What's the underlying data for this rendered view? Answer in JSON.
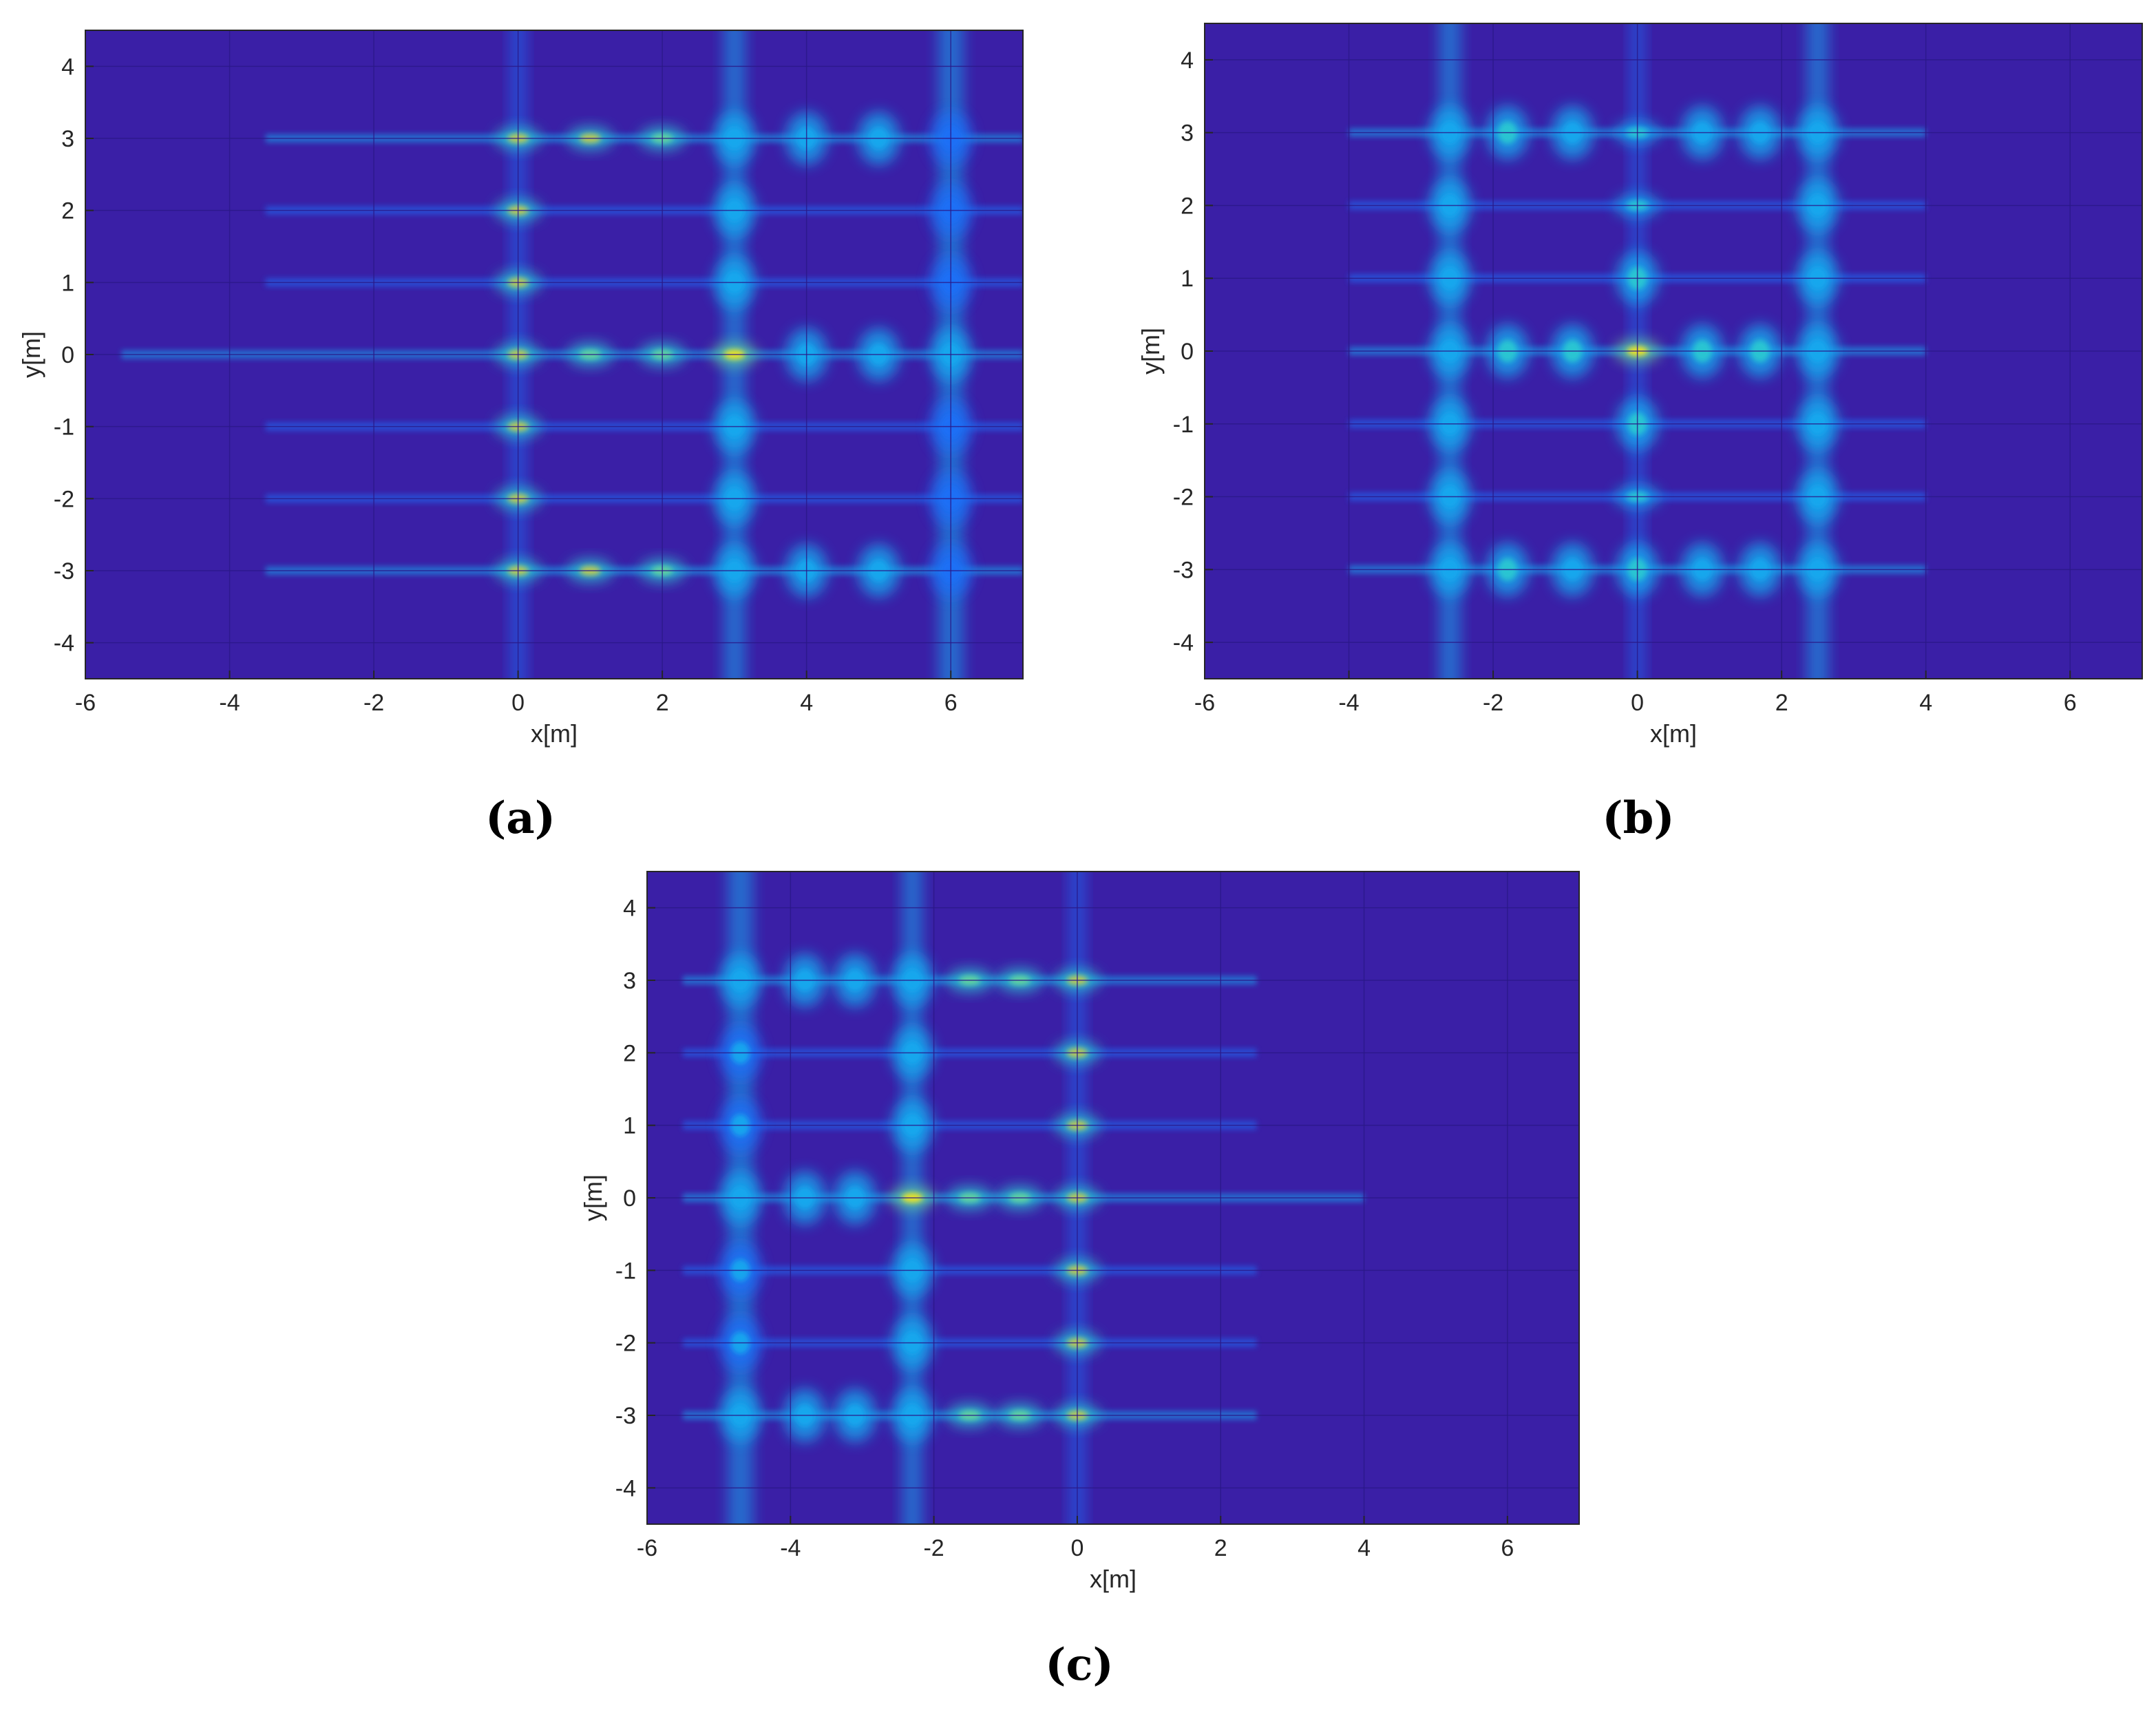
{
  "figure": {
    "colors": {
      "background": "#3a1fa6",
      "frame": "#262626",
      "grid": "#2a1888",
      "colormap": [
        "#3a1fa6",
        "#2f39d9",
        "#1f6ff6",
        "#18a8ee",
        "#2ac8d1",
        "#66d39c",
        "#c4c94d",
        "#f7e31f"
      ]
    }
  },
  "chart_data": [
    {
      "type": "heatmap",
      "panel_label": "(a)",
      "xlabel": "x[m]",
      "ylabel": "y[m]",
      "xlim": [
        -6,
        7
      ],
      "ylim": [
        -4.5,
        4.5
      ],
      "xticks": [
        -6,
        -4,
        -2,
        0,
        2,
        4,
        6
      ],
      "yticks": [
        4,
        3,
        2,
        1,
        0,
        -1,
        -2,
        -3,
        -4
      ],
      "xtick_labels": [
        "-6",
        "-4",
        "-2",
        "0",
        "2",
        "4",
        "6"
      ],
      "ytick_labels": [
        "4",
        "3",
        "2",
        "1",
        "0",
        "-1",
        "-2",
        "-3",
        "-4"
      ],
      "grid": true,
      "streaks": [
        {
          "y": 3,
          "x0": -3.5,
          "x1": 7,
          "intensity": 0.2
        },
        {
          "y": 2,
          "x0": -3.5,
          "x1": 7,
          "intensity": 0.12
        },
        {
          "y": 1,
          "x0": -3.5,
          "x1": 7,
          "intensity": 0.12
        },
        {
          "y": 0,
          "x0": -5.5,
          "x1": 7,
          "intensity": 0.22
        },
        {
          "y": -1,
          "x0": -3.5,
          "x1": 7,
          "intensity": 0.12
        },
        {
          "y": -2,
          "x0": -3.5,
          "x1": 7,
          "intensity": 0.12
        },
        {
          "y": -3,
          "x0": -3.5,
          "x1": 7,
          "intensity": 0.2
        }
      ],
      "bands": [
        {
          "x": 0,
          "intensity": 0.16,
          "width": 0.22
        },
        {
          "x": 3,
          "intensity": 0.26,
          "width": 0.3
        },
        {
          "x": 6,
          "intensity": 0.3,
          "width": 0.35
        }
      ],
      "points": [
        {
          "x": 0,
          "y": 3,
          "intensity": 0.85
        },
        {
          "x": 0,
          "y": 2,
          "intensity": 0.85
        },
        {
          "x": 0,
          "y": 1,
          "intensity": 0.85
        },
        {
          "x": 0,
          "y": 0,
          "intensity": 0.85
        },
        {
          "x": 0,
          "y": -1,
          "intensity": 0.85
        },
        {
          "x": 0,
          "y": -2,
          "intensity": 0.85
        },
        {
          "x": 0,
          "y": -3,
          "intensity": 0.85
        },
        {
          "x": 1,
          "y": 3,
          "intensity": 0.8
        },
        {
          "x": 2,
          "y": 3,
          "intensity": 0.72
        },
        {
          "x": 1,
          "y": 0,
          "intensity": 0.75
        },
        {
          "x": 2,
          "y": 0,
          "intensity": 0.75
        },
        {
          "x": 1,
          "y": -3,
          "intensity": 0.8
        },
        {
          "x": 2,
          "y": -3,
          "intensity": 0.72
        },
        {
          "x": 3,
          "y": 3,
          "intensity": 0.45
        },
        {
          "x": 3,
          "y": 2,
          "intensity": 0.45
        },
        {
          "x": 3,
          "y": 1,
          "intensity": 0.45
        },
        {
          "x": 3,
          "y": 0,
          "intensity": 1.0
        },
        {
          "x": 3,
          "y": -1,
          "intensity": 0.45
        },
        {
          "x": 3,
          "y": -2,
          "intensity": 0.45
        },
        {
          "x": 3,
          "y": -3,
          "intensity": 0.45
        },
        {
          "x": 4,
          "y": 3,
          "intensity": 0.4
        },
        {
          "x": 5,
          "y": 3,
          "intensity": 0.38
        },
        {
          "x": 4,
          "y": 0,
          "intensity": 0.42
        },
        {
          "x": 5,
          "y": 0,
          "intensity": 0.42
        },
        {
          "x": 4,
          "y": -3,
          "intensity": 0.4
        },
        {
          "x": 5,
          "y": -3,
          "intensity": 0.38
        },
        {
          "x": 6,
          "y": 3,
          "intensity": 0.35
        },
        {
          "x": 6,
          "y": 2,
          "intensity": 0.35
        },
        {
          "x": 6,
          "y": 1,
          "intensity": 0.35
        },
        {
          "x": 6,
          "y": 0,
          "intensity": 0.4
        },
        {
          "x": 6,
          "y": -1,
          "intensity": 0.35
        },
        {
          "x": 6,
          "y": -2,
          "intensity": 0.35
        },
        {
          "x": 6,
          "y": -3,
          "intensity": 0.35
        }
      ]
    },
    {
      "type": "heatmap",
      "panel_label": "(b)",
      "xlabel": "x[m]",
      "ylabel": "y[m]",
      "xlim": [
        -6,
        7
      ],
      "ylim": [
        -4.5,
        4.5
      ],
      "xticks": [
        -6,
        -4,
        -2,
        0,
        2,
        4,
        6
      ],
      "yticks": [
        4,
        3,
        2,
        1,
        0,
        -1,
        -2,
        -3,
        -4
      ],
      "xtick_labels": [
        "-6",
        "-4",
        "-2",
        "0",
        "2",
        "4",
        "6"
      ],
      "ytick_labels": [
        "4",
        "3",
        "2",
        "1",
        "0",
        "-1",
        "-2",
        "-3",
        "-4"
      ],
      "grid": true,
      "streaks": [
        {
          "y": 3,
          "x0": -4,
          "x1": 4,
          "intensity": 0.16
        },
        {
          "y": 2,
          "x0": -4,
          "x1": 4,
          "intensity": 0.1
        },
        {
          "y": 1,
          "x0": -4,
          "x1": 4,
          "intensity": 0.1
        },
        {
          "y": 0,
          "x0": -4,
          "x1": 4,
          "intensity": 0.18
        },
        {
          "y": -1,
          "x0": -4,
          "x1": 4,
          "intensity": 0.1
        },
        {
          "y": -2,
          "x0": -4,
          "x1": 4,
          "intensity": 0.1
        },
        {
          "y": -3,
          "x0": -4,
          "x1": 4,
          "intensity": 0.16
        }
      ],
      "bands": [
        {
          "x": -2.6,
          "intensity": 0.26,
          "width": 0.3
        },
        {
          "x": 0,
          "intensity": 0.14,
          "width": 0.2
        },
        {
          "x": 2.5,
          "intensity": 0.26,
          "width": 0.3
        }
      ],
      "points": [
        {
          "x": -2.6,
          "y": 3,
          "intensity": 0.42
        },
        {
          "x": -2.6,
          "y": 2,
          "intensity": 0.4
        },
        {
          "x": -2.6,
          "y": 1,
          "intensity": 0.4
        },
        {
          "x": -2.6,
          "y": 0,
          "intensity": 0.42
        },
        {
          "x": -2.6,
          "y": -1,
          "intensity": 0.4
        },
        {
          "x": -2.6,
          "y": -2,
          "intensity": 0.4
        },
        {
          "x": -2.6,
          "y": -3,
          "intensity": 0.42
        },
        {
          "x": 2.5,
          "y": 3,
          "intensity": 0.42
        },
        {
          "x": 2.5,
          "y": 2,
          "intensity": 0.4
        },
        {
          "x": 2.5,
          "y": 1,
          "intensity": 0.4
        },
        {
          "x": 2.5,
          "y": 0,
          "intensity": 0.42
        },
        {
          "x": 2.5,
          "y": -1,
          "intensity": 0.4
        },
        {
          "x": 2.5,
          "y": -2,
          "intensity": 0.4
        },
        {
          "x": 2.5,
          "y": -3,
          "intensity": 0.42
        },
        {
          "x": 0,
          "y": 3,
          "intensity": 0.62
        },
        {
          "x": 0,
          "y": 2,
          "intensity": 0.62
        },
        {
          "x": 0,
          "y": 1,
          "intensity": 0.6
        },
        {
          "x": 0,
          "y": 0,
          "intensity": 0.95
        },
        {
          "x": 0,
          "y": -1,
          "intensity": 0.6
        },
        {
          "x": 0,
          "y": -2,
          "intensity": 0.62
        },
        {
          "x": 0,
          "y": -3,
          "intensity": 0.58
        },
        {
          "x": -1.8,
          "y": 3,
          "intensity": 0.5
        },
        {
          "x": -0.9,
          "y": 3,
          "intensity": 0.45
        },
        {
          "x": 0.9,
          "y": 3,
          "intensity": 0.45
        },
        {
          "x": 1.7,
          "y": 3,
          "intensity": 0.45
        },
        {
          "x": -1.8,
          "y": 0,
          "intensity": 0.55
        },
        {
          "x": -0.9,
          "y": 0,
          "intensity": 0.6
        },
        {
          "x": 0.9,
          "y": 0,
          "intensity": 0.6
        },
        {
          "x": 1.7,
          "y": 0,
          "intensity": 0.6
        },
        {
          "x": -1.8,
          "y": -3,
          "intensity": 0.5
        },
        {
          "x": -0.9,
          "y": -3,
          "intensity": 0.45
        },
        {
          "x": 0.9,
          "y": -3,
          "intensity": 0.45
        },
        {
          "x": 1.7,
          "y": -3,
          "intensity": 0.45
        }
      ]
    },
    {
      "type": "heatmap",
      "panel_label": "(c)",
      "xlabel": "x[m]",
      "ylabel": "y[m]",
      "xlim": [
        -6,
        7
      ],
      "ylim": [
        -4.5,
        4.5
      ],
      "xticks": [
        -6,
        -4,
        -2,
        0,
        2,
        4,
        6
      ],
      "yticks": [
        4,
        3,
        2,
        1,
        0,
        -1,
        -2,
        -3,
        -4
      ],
      "xtick_labels": [
        "-6",
        "-4",
        "-2",
        "0",
        "2",
        "4",
        "6"
      ],
      "ytick_labels": [
        "4",
        "3",
        "2",
        "1",
        "0",
        "-1",
        "-2",
        "-3",
        "-4"
      ],
      "grid": true,
      "streaks": [
        {
          "y": 3,
          "x0": -5.5,
          "x1": 2.5,
          "intensity": 0.18
        },
        {
          "y": 2,
          "x0": -5.5,
          "x1": 2.5,
          "intensity": 0.12
        },
        {
          "y": 1,
          "x0": -5.5,
          "x1": 2.5,
          "intensity": 0.12
        },
        {
          "y": 0,
          "x0": -5.5,
          "x1": 4,
          "intensity": 0.2
        },
        {
          "y": -1,
          "x0": -5.5,
          "x1": 2.5,
          "intensity": 0.12
        },
        {
          "y": -2,
          "x0": -5.5,
          "x1": 2.5,
          "intensity": 0.12
        },
        {
          "y": -3,
          "x0": -5.5,
          "x1": 2.5,
          "intensity": 0.18
        }
      ],
      "bands": [
        {
          "x": -4.7,
          "intensity": 0.32,
          "width": 0.35
        },
        {
          "x": -2.3,
          "intensity": 0.22,
          "width": 0.28
        },
        {
          "x": 0,
          "intensity": 0.16,
          "width": 0.22
        }
      ],
      "points": [
        {
          "x": -4.7,
          "y": 3,
          "intensity": 0.38
        },
        {
          "x": -4.7,
          "y": 2,
          "intensity": 0.36
        },
        {
          "x": -4.7,
          "y": 1,
          "intensity": 0.36
        },
        {
          "x": -4.7,
          "y": 0,
          "intensity": 0.38
        },
        {
          "x": -4.7,
          "y": -1,
          "intensity": 0.36
        },
        {
          "x": -4.7,
          "y": -2,
          "intensity": 0.36
        },
        {
          "x": -4.7,
          "y": -3,
          "intensity": 0.38
        },
        {
          "x": -3.8,
          "y": 3,
          "intensity": 0.38
        },
        {
          "x": -3.1,
          "y": 3,
          "intensity": 0.38
        },
        {
          "x": -3.8,
          "y": 0,
          "intensity": 0.4
        },
        {
          "x": -3.1,
          "y": 0,
          "intensity": 0.4
        },
        {
          "x": -3.8,
          "y": -3,
          "intensity": 0.38
        },
        {
          "x": -3.1,
          "y": -3,
          "intensity": 0.38
        },
        {
          "x": -2.3,
          "y": 3,
          "intensity": 0.45
        },
        {
          "x": -2.3,
          "y": 2,
          "intensity": 0.45
        },
        {
          "x": -2.3,
          "y": 1,
          "intensity": 0.45
        },
        {
          "x": -2.3,
          "y": 0,
          "intensity": 1.0
        },
        {
          "x": -2.3,
          "y": -1,
          "intensity": 0.45
        },
        {
          "x": -2.3,
          "y": -2,
          "intensity": 0.45
        },
        {
          "x": -2.3,
          "y": -3,
          "intensity": 0.45
        },
        {
          "x": -1.5,
          "y": 3,
          "intensity": 0.72
        },
        {
          "x": -0.8,
          "y": 3,
          "intensity": 0.75
        },
        {
          "x": -1.5,
          "y": 0,
          "intensity": 0.72
        },
        {
          "x": -0.8,
          "y": 0,
          "intensity": 0.75
        },
        {
          "x": -1.5,
          "y": -3,
          "intensity": 0.72
        },
        {
          "x": -0.8,
          "y": -3,
          "intensity": 0.75
        },
        {
          "x": 0,
          "y": 3,
          "intensity": 0.82
        },
        {
          "x": 0,
          "y": 2,
          "intensity": 0.82
        },
        {
          "x": 0,
          "y": 1,
          "intensity": 0.82
        },
        {
          "x": 0,
          "y": 0,
          "intensity": 0.82
        },
        {
          "x": 0,
          "y": -1,
          "intensity": 0.82
        },
        {
          "x": 0,
          "y": -2,
          "intensity": 0.82
        },
        {
          "x": 0,
          "y": -3,
          "intensity": 0.82
        }
      ]
    }
  ]
}
